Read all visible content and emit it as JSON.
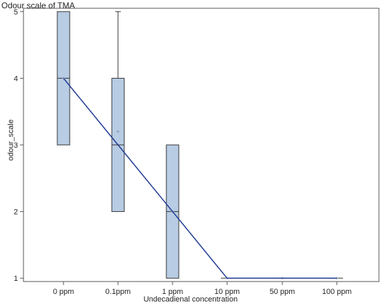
{
  "chart_data": {
    "type": "box",
    "title": "Odour scale of TMA",
    "xlabel": "Undecadienal concentration",
    "ylabel": "odour_scale",
    "categories": [
      "0 ppm",
      "0.1ppm",
      "1 ppm",
      "10 ppm",
      "50 ppm",
      "100 ppm"
    ],
    "yticks": [
      1,
      2,
      3,
      4,
      5
    ],
    "ylim": [
      0.95,
      5.05
    ],
    "boxes": [
      {
        "category": "0 ppm",
        "q1": 3,
        "median": 4,
        "q3": 5,
        "whisker_low": 3,
        "whisker_high": 5,
        "mean": 4.0
      },
      {
        "category": "0.1ppm",
        "q1": 2,
        "median": 3,
        "q3": 4,
        "whisker_low": 2,
        "whisker_high": 5,
        "mean": 3.2
      },
      {
        "category": "1 ppm",
        "q1": 1,
        "median": 2,
        "q3": 3,
        "whisker_low": 1,
        "whisker_high": 3,
        "mean": 2.0
      },
      {
        "category": "10 ppm",
        "q1": 1,
        "median": 1,
        "q3": 1,
        "whisker_low": 1,
        "whisker_high": 1,
        "mean": 1.0
      },
      {
        "category": "50 ppm",
        "q1": 1,
        "median": 1,
        "q3": 1,
        "whisker_low": 1,
        "whisker_high": 1,
        "mean": 1.0
      },
      {
        "category": "100 ppm",
        "q1": 1,
        "median": 1,
        "q3": 1,
        "whisker_low": 1,
        "whisker_high": 1,
        "mean": 1.0
      }
    ],
    "trend_line": {
      "x": [
        "0 ppm",
        "0.1ppm",
        "1 ppm",
        "10 ppm",
        "50 ppm",
        "100 ppm"
      ],
      "y": [
        4,
        3,
        2,
        1,
        1,
        1
      ]
    },
    "colors": {
      "box_fill": "#b8cce4",
      "box_edge": "#333333",
      "trend_line": "#1f3a93",
      "mean_marker": "#8a9bb8",
      "frame": "#555555"
    },
    "grid": false,
    "legend": "none"
  }
}
